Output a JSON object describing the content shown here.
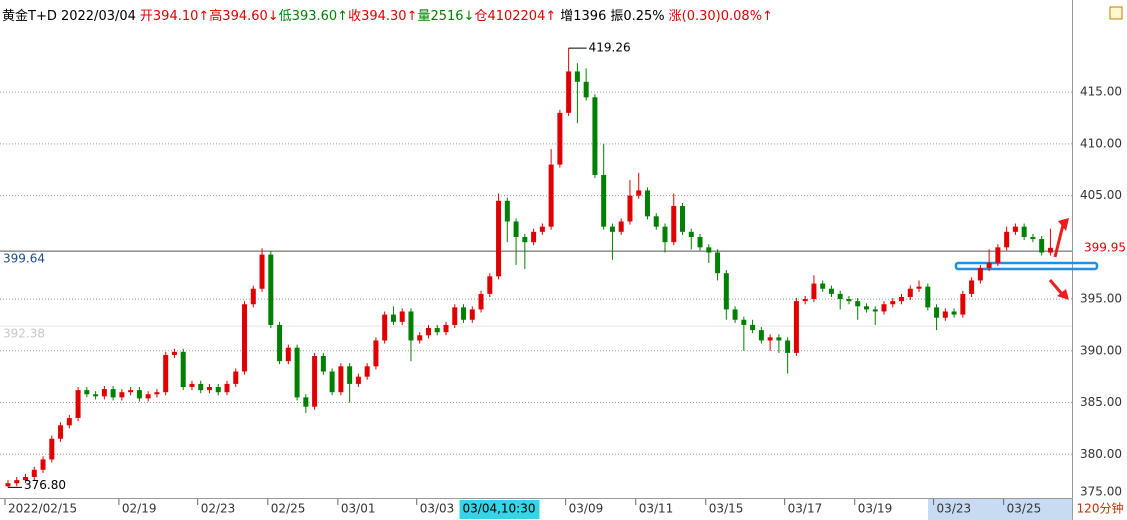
{
  "chart_data": {
    "type": "candlestick",
    "header": [
      {
        "text": "黄金T+D 2022/03/04",
        "color": "#000000"
      },
      {
        "text": "开394.10↑",
        "color": "#e00000"
      },
      {
        "text": "高394.60↓",
        "color": "#e00000"
      },
      {
        "text": "低393.60↑",
        "color": "#008000"
      },
      {
        "text": "收394.30↑",
        "color": "#e00000"
      },
      {
        "text": "量2516↓",
        "color": "#008000"
      },
      {
        "text": "仓4102204↑",
        "color": "#e00000"
      },
      {
        "text": "增1396",
        "color": "#000000"
      },
      {
        "text": "振0.25%",
        "color": "#000000"
      },
      {
        "text": "涨(0.30)0.08%↑",
        "color": "#e00000"
      }
    ],
    "period": "120分钟",
    "cursor_label": "03/04,10:30",
    "up_color": "#e00000",
    "down_color": "#008000",
    "grid": true,
    "ylim": [
      375,
      421.2
    ],
    "yticks": [
      {
        "value": 375,
        "label": "375.00"
      },
      {
        "value": 380,
        "label": "380.00"
      },
      {
        "value": 385,
        "label": "385.00"
      },
      {
        "value": 390,
        "label": "390.00"
      },
      {
        "value": 395,
        "label": "395.00"
      },
      {
        "value": 405,
        "label": "405.00"
      },
      {
        "value": 410,
        "label": "410.00"
      },
      {
        "value": 415,
        "label": "415.00"
      }
    ],
    "last_price": 399.95,
    "ref_lines": [
      399.64,
      392.38
    ],
    "max_mark": 419.26,
    "min_mark": {
      "value": 376.8,
      "label": "376.80"
    },
    "categories": [
      "2022/02/15",
      null,
      null,
      null,
      null,
      null,
      null,
      null,
      null,
      null,
      null,
      null,
      null,
      "02/19",
      null,
      null,
      null,
      null,
      null,
      null,
      null,
      null,
      "02/23",
      null,
      null,
      null,
      null,
      null,
      null,
      null,
      "02/25",
      null,
      null,
      null,
      null,
      null,
      null,
      null,
      "03/01",
      null,
      null,
      null,
      null,
      null,
      null,
      null,
      null,
      "03/03",
      null,
      null,
      null,
      null,
      null,
      null,
      null,
      null,
      null,
      null,
      null,
      null,
      null,
      null,
      null,
      null,
      "03/09",
      null,
      null,
      null,
      null,
      null,
      null,
      null,
      "03/11",
      null,
      null,
      null,
      null,
      null,
      null,
      null,
      "03/15",
      null,
      null,
      null,
      null,
      null,
      null,
      null,
      null,
      "03/17",
      null,
      null,
      null,
      null,
      null,
      null,
      null,
      "03/19",
      null,
      null,
      null,
      null,
      null,
      null,
      null,
      null,
      "03/23",
      null,
      null,
      null,
      null,
      null,
      null,
      null,
      "03/25",
      null,
      null,
      null,
      null,
      null
    ],
    "open": [
      376.9,
      377.2,
      377.5,
      377.8,
      378.5,
      379.5,
      381.5,
      382.8,
      383.5,
      386.2,
      385.8,
      385.6,
      386.3,
      385.5,
      386.0,
      386.2,
      385.4,
      385.8,
      386.0,
      389.6,
      389.9,
      386.5,
      386.8,
      386.2,
      386.5,
      386.0,
      386.8,
      388.0,
      394.5,
      396.0,
      399.3,
      392.5,
      389.0,
      390.3,
      385.5,
      384.6,
      389.5,
      388.0,
      386.0,
      388.5,
      386.8,
      387.5,
      388.5,
      391.0,
      393.5,
      392.8,
      393.8,
      391.0,
      391.5,
      392.2,
      391.8,
      392.5,
      394.2,
      393.0,
      394.0,
      395.5,
      397.2,
      404.5,
      402.5,
      401.0,
      400.5,
      401.5,
      402.0,
      408.0,
      413.0,
      417.0,
      416.0,
      414.5,
      407.0,
      402.0,
      401.5,
      402.5,
      405.0,
      405.5,
      403.0,
      402.0,
      400.5,
      404.0,
      401.5,
      401.0,
      400.0,
      399.5,
      397.5,
      394.0,
      393.0,
      392.5,
      392.0,
      391.0,
      391.3,
      391.0,
      389.8,
      394.8,
      395.0,
      396.5,
      396.0,
      395.5,
      395.0,
      394.8,
      394.3,
      394.0,
      393.8,
      394.5,
      394.8,
      395.2,
      396.0,
      396.2,
      394.2,
      393.2,
      393.8,
      393.5,
      395.5,
      396.8,
      398.0,
      398.5,
      400.0,
      401.5,
      402.0,
      401.0,
      400.8,
      399.5
    ],
    "high": [
      377.5,
      377.8,
      378.1,
      378.8,
      379.8,
      381.8,
      383.1,
      383.8,
      386.5,
      386.5,
      386.1,
      386.6,
      386.6,
      386.3,
      386.5,
      386.5,
      386.1,
      386.3,
      389.9,
      390.2,
      390.2,
      387.1,
      387.1,
      386.8,
      386.8,
      387.1,
      388.3,
      394.8,
      396.3,
      399.9,
      399.6,
      392.8,
      390.6,
      390.6,
      385.8,
      389.8,
      389.8,
      388.3,
      388.8,
      388.8,
      387.8,
      388.8,
      391.3,
      393.8,
      394.3,
      394.1,
      394.1,
      391.8,
      392.5,
      392.5,
      392.8,
      394.5,
      394.5,
      394.3,
      395.8,
      397.5,
      405.2,
      404.8,
      402.8,
      401.3,
      401.8,
      402.3,
      409.5,
      413.3,
      419.26,
      417.8,
      417.3,
      414.8,
      410.0,
      402.3,
      402.8,
      406.5,
      407.2,
      405.8,
      403.3,
      402.3,
      405.2,
      404.3,
      401.8,
      401.3,
      400.3,
      399.8,
      397.8,
      394.3,
      393.3,
      393.0,
      392.3,
      391.6,
      391.6,
      391.3,
      395.1,
      395.3,
      397.3,
      396.8,
      396.3,
      395.8,
      395.3,
      395.1,
      394.6,
      394.3,
      394.8,
      395.1,
      395.5,
      396.3,
      396.8,
      396.5,
      394.5,
      394.1,
      394.1,
      395.8,
      397.1,
      398.3,
      399.8,
      400.3,
      402.0,
      402.3,
      402.3,
      401.3,
      401.1,
      401.8
    ],
    "low": [
      376.8,
      376.9,
      377.2,
      377.5,
      378.2,
      379.2,
      381.2,
      382.5,
      383.2,
      385.5,
      385.3,
      385.3,
      385.2,
      385.2,
      385.7,
      385.1,
      385.1,
      385.5,
      385.7,
      389.3,
      386.2,
      386.2,
      385.9,
      385.9,
      385.7,
      385.7,
      386.5,
      387.7,
      394.2,
      395.7,
      392.2,
      388.7,
      388.7,
      385.2,
      384.0,
      384.3,
      387.7,
      385.7,
      385.7,
      385.0,
      386.5,
      387.2,
      388.2,
      390.7,
      392.5,
      392.5,
      389.0,
      390.7,
      391.2,
      391.5,
      391.5,
      392.2,
      392.7,
      392.7,
      393.7,
      395.2,
      396.9,
      400.5,
      398.3,
      397.9,
      400.2,
      401.2,
      401.7,
      407.7,
      412.7,
      412.0,
      414.2,
      406.7,
      401.7,
      398.8,
      401.2,
      402.2,
      404.7,
      402.7,
      401.7,
      399.5,
      400.2,
      401.2,
      399.8,
      399.7,
      398.5,
      396.8,
      393.0,
      392.7,
      390.0,
      391.7,
      390.7,
      390.0,
      389.8,
      387.8,
      389.5,
      394.5,
      394.7,
      395.7,
      395.2,
      394.0,
      394.5,
      393.0,
      393.7,
      392.5,
      393.5,
      394.2,
      394.5,
      394.9,
      395.7,
      393.9,
      392.0,
      392.9,
      393.2,
      393.2,
      395.2,
      396.5,
      397.7,
      398.2,
      399.7,
      401.2,
      400.7,
      400.5,
      399.2,
      399.2
    ],
    "close": [
      377.2,
      377.5,
      377.8,
      378.5,
      379.5,
      381.5,
      382.8,
      383.5,
      386.2,
      385.8,
      385.6,
      386.3,
      385.5,
      386.0,
      386.2,
      385.4,
      385.8,
      386.0,
      389.6,
      389.9,
      386.5,
      386.8,
      386.2,
      386.5,
      386.0,
      386.8,
      388.0,
      394.5,
      396.0,
      399.3,
      392.5,
      389.0,
      390.3,
      385.5,
      384.6,
      389.5,
      388.0,
      386.0,
      388.5,
      386.8,
      387.5,
      388.5,
      391.0,
      393.5,
      392.8,
      393.8,
      391.0,
      391.5,
      392.2,
      391.8,
      392.5,
      394.2,
      393.0,
      394.0,
      395.5,
      397.2,
      404.5,
      402.5,
      401.0,
      400.5,
      401.5,
      402.0,
      408.0,
      413.0,
      417.0,
      416.0,
      414.5,
      407.0,
      402.0,
      401.5,
      402.5,
      405.0,
      405.5,
      403.0,
      402.0,
      400.5,
      404.0,
      401.5,
      401.0,
      400.0,
      399.5,
      397.5,
      394.0,
      393.0,
      392.5,
      392.0,
      391.0,
      391.3,
      391.0,
      389.8,
      394.8,
      395.0,
      396.5,
      396.0,
      395.5,
      395.0,
      394.8,
      394.3,
      394.0,
      393.8,
      394.5,
      394.8,
      395.2,
      396.0,
      396.2,
      394.2,
      393.2,
      393.8,
      393.5,
      395.5,
      396.8,
      398.0,
      398.5,
      400.0,
      401.5,
      402.0,
      401.0,
      400.8,
      399.5,
      399.95
    ]
  }
}
